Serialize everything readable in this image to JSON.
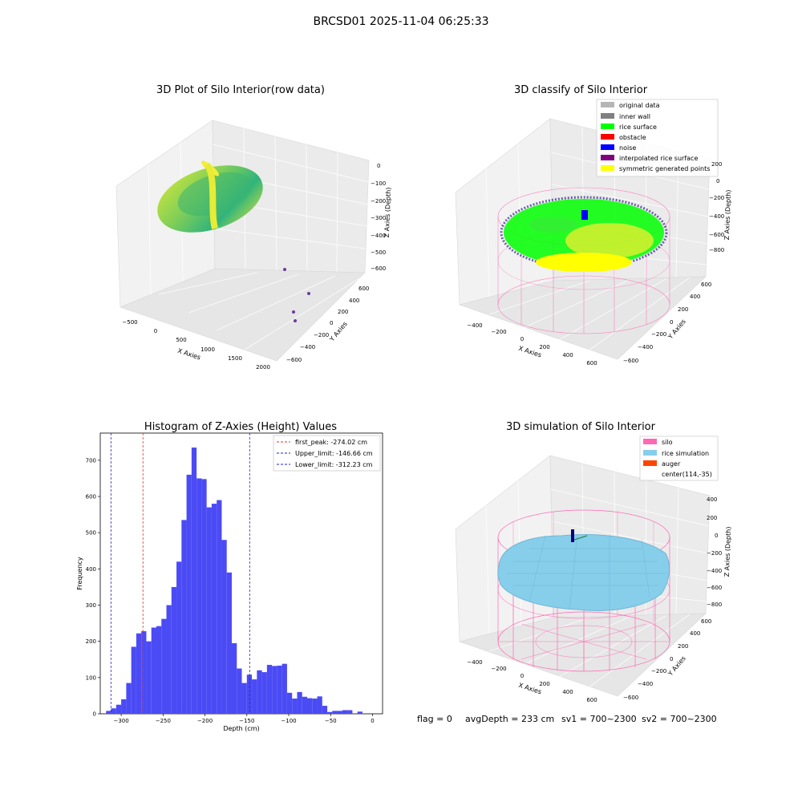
{
  "figure_title": "BRCSD01 2025-11-04 06:25:33",
  "footer": {
    "flag": "flag = 0",
    "avg_depth": "avgDepth = 233 cm",
    "sv1": "sv1 = 700~2300",
    "sv2": "sv2 = 700~2300"
  },
  "colors": {
    "hist_bar": "#4b4bf5",
    "peak_line": "#e8312a",
    "limit_line": "#2222cc",
    "silo": "#ff69b4",
    "rice_simulation": "#87ceeb",
    "auger": "#ff4500",
    "original_data": "#b5b5b5",
    "inner_wall": "#808080",
    "rice_surface": "#00ff00",
    "obstacle": "#ff0000",
    "noise": "#0000ff",
    "interpolated_rice_surface": "#800080",
    "symmetric_generated_points": "#ffff00"
  },
  "chart_data": [
    {
      "type": "scatter",
      "title": "3D Plot of Silo Interior(row data)",
      "xlabel": "X Axies",
      "ylabel": "Y Axies",
      "zlabel": "Z Axies (Depth)",
      "x_ticks": [
        "−500",
        "0",
        "500",
        "1000",
        "1500",
        "2000"
      ],
      "y_ticks": [
        "600",
        "400",
        "200",
        "0",
        "−200",
        "−400",
        "−600"
      ],
      "z_ticks": [
        "0",
        "−100",
        "−200",
        "−300",
        "−400",
        "−500",
        "−600"
      ],
      "grid": true,
      "colormap": "viridis"
    },
    {
      "type": "scatter",
      "title": "3D classify of Silo Interior",
      "xlabel": "X Axies",
      "ylabel": "Y Axies",
      "zlabel": "Z Axies (Depth)",
      "x_ticks": [
        "−400",
        "−200",
        "0",
        "200",
        "400",
        "600"
      ],
      "y_ticks": [
        "600",
        "400",
        "200",
        "0",
        "−200",
        "−400",
        "−600"
      ],
      "z_ticks": [
        "200",
        "0",
        "−200",
        "−400",
        "−600",
        "−800"
      ],
      "grid": true,
      "legend_position": "top-right",
      "legend": [
        {
          "label": "original data",
          "color": "#b5b5b5"
        },
        {
          "label": "inner wall",
          "color": "#808080"
        },
        {
          "label": "rice surface",
          "color": "#00ff00"
        },
        {
          "label": "obstacle",
          "color": "#ff0000"
        },
        {
          "label": "noise",
          "color": "#0000ff"
        },
        {
          "label": "interpolated rice surface",
          "color": "#800080"
        },
        {
          "label": "symmetric generated points",
          "color": "#ffff00"
        }
      ]
    },
    {
      "type": "bar",
      "title": "Histogram of Z-Axies (Height) Values",
      "xlabel": "Depth (cm)",
      "ylabel": "Frequency",
      "xlim": [
        -325,
        12
      ],
      "ylim": [
        0,
        775
      ],
      "x_ticks": [
        -300,
        -250,
        -200,
        -150,
        -100,
        -50,
        0
      ],
      "y_ticks": [
        0,
        100,
        200,
        300,
        400,
        500,
        600,
        700
      ],
      "bin_start": -318,
      "bin_width": 6,
      "values": [
        8,
        15,
        25,
        40,
        85,
        185,
        222,
        228,
        200,
        238,
        242,
        262,
        300,
        350,
        420,
        535,
        660,
        735,
        650,
        648,
        570,
        580,
        590,
        480,
        390,
        195,
        125,
        85,
        108,
        95,
        120,
        115,
        135,
        132,
        133,
        138,
        58,
        42,
        60,
        47,
        43,
        42,
        48,
        22,
        5,
        8,
        8,
        10,
        10,
        0,
        6
      ],
      "vlines": [
        {
          "name": "first_peak: -274.02 cm",
          "x": -274.02,
          "color": "#e8312a"
        },
        {
          "name": "Upper_limit: -146.66 cm",
          "x": -146.66,
          "color": "#2222cc"
        },
        {
          "name": "Lower_limit: -312.23 cm",
          "x": -312.23,
          "color": "#2222cc"
        }
      ],
      "legend_position": "top-right",
      "grid": false
    },
    {
      "type": "surface",
      "title": "3D simulation of Silo Interior",
      "xlabel": "X Axies",
      "ylabel": "Y Axies",
      "zlabel": "Z Axies (Depth)",
      "x_ticks": [
        "−400",
        "−200",
        "0",
        "200",
        "400",
        "600"
      ],
      "y_ticks": [
        "600",
        "400",
        "200",
        "0",
        "−200",
        "−400",
        "−600"
      ],
      "z_ticks": [
        "400",
        "200",
        "0",
        "−200",
        "−400",
        "−600",
        "−800"
      ],
      "grid": true,
      "legend_position": "top-right",
      "legend": [
        {
          "label": "silo",
          "color": "#ff69b4"
        },
        {
          "label": "rice simulation",
          "color": "#87ceeb"
        },
        {
          "label": "auger",
          "color": "#ff4500"
        },
        {
          "label": "center(114,-35)",
          "color": ""
        }
      ]
    }
  ]
}
